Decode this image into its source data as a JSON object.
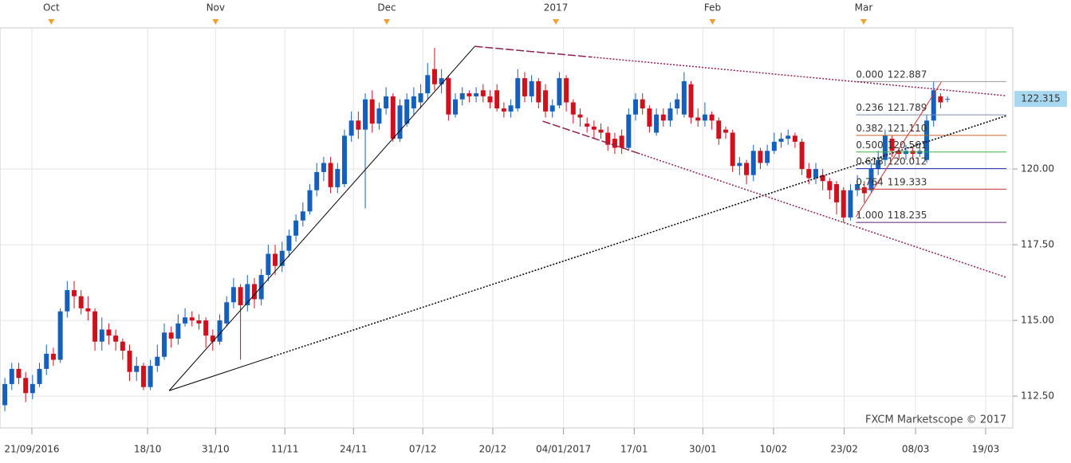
{
  "chart_data": {
    "type": "candlestick",
    "watermark": "FXCM Marketscope © 2017",
    "xlim": [
      -0.7,
      144.5
    ],
    "ylim": [
      111.45,
      124.66
    ],
    "grid": true,
    "up_color": "#1560bd",
    "down_color": "#d0101c",
    "yticks": [
      {
        "value": 112.5,
        "label": "112.50"
      },
      {
        "value": 115,
        "label": "115.00"
      },
      {
        "value": 117.5,
        "label": "117.50"
      },
      {
        "value": 120,
        "label": "120.00"
      }
    ],
    "xticks": [
      {
        "value": 3.9,
        "label": "21/09/2016"
      },
      {
        "value": 20.6,
        "label": "18/10"
      },
      {
        "value": 30.4,
        "label": "31/10"
      },
      {
        "value": 40.4,
        "label": "11/11"
      },
      {
        "value": 50.3,
        "label": "24/11"
      },
      {
        "value": 60.3,
        "label": "07/12"
      },
      {
        "value": 70.4,
        "label": "20/12"
      },
      {
        "value": 80.6,
        "label": "04/01/2017"
      },
      {
        "value": 90.8,
        "label": "17/01"
      },
      {
        "value": 100.7,
        "label": "30/01"
      },
      {
        "value": 110.9,
        "label": "10/02"
      },
      {
        "value": 121.1,
        "label": "23/02"
      },
      {
        "value": 131.4,
        "label": "08/03"
      },
      {
        "value": 141.5,
        "label": "19/03"
      }
    ],
    "month_ticks": [
      {
        "value": 6.7,
        "label": "Oct"
      },
      {
        "value": 30.4,
        "label": "Nov"
      },
      {
        "value": 55.1,
        "label": "Dec"
      },
      {
        "value": 79.5,
        "label": "2017"
      },
      {
        "value": 102.1,
        "label": "Feb"
      },
      {
        "value": 123.9,
        "label": "Mar"
      }
    ],
    "open": [
      112.2,
      112.9,
      113.4,
      113.1,
      112.6,
      112.9,
      113.4,
      113.9,
      113.7,
      115.3,
      116.0,
      115.8,
      115.4,
      115.3,
      114.3,
      114.7,
      114.5,
      114.3,
      114.0,
      113.3,
      113.5,
      112.8,
      113.5,
      113.8,
      114.6,
      114.4,
      114.9,
      115.1,
      115.0,
      115.0,
      114.5,
      114.3,
      114.9,
      115.6,
      116.1,
      115.5,
      116.2,
      115.7,
      116.5,
      117.2,
      116.8,
      117.3,
      117.8,
      118.3,
      118.6,
      119.3,
      119.9,
      120.2,
      119.4,
      119.5,
      121.1,
      121.6,
      121.3,
      122.3,
      121.5,
      122.0,
      122.4,
      121.0,
      121.5,
      122.0,
      122.2,
      122.5,
      123.3,
      122.8,
      123.0,
      121.8,
      122.3,
      122.5,
      122.4,
      122.6,
      122.4,
      122.6,
      122.0,
      121.9,
      122.0,
      123.0,
      122.4,
      122.9,
      122.6,
      121.9,
      122.1,
      123.0,
      122.2,
      121.8,
      121.5,
      121.4,
      121.3,
      121.2,
      121.0,
      121.1,
      120.7,
      121.8,
      122.3,
      122.0,
      121.2,
      121.8,
      121.6,
      122.0,
      121.8,
      122.8,
      121.7,
      121.6,
      121.8,
      121.6,
      121.3,
      121.2,
      120.1,
      120.2,
      119.8,
      120.6,
      120.2,
      120.6,
      120.9,
      121.0,
      121.1,
      120.9,
      120.0,
      119.7,
      119.8,
      119.6,
      119.5,
      119.3,
      118.4,
      119.3,
      119.4,
      119.3,
      120.0,
      120.3,
      121.0,
      120.6,
      120.5,
      120.6,
      120.5,
      120.3,
      121.6,
      122.4,
      122.3
    ],
    "high": [
      113.1,
      113.6,
      113.6,
      113.3,
      113.2,
      113.6,
      114.2,
      114.1,
      115.4,
      116.3,
      116.3,
      116.0,
      115.8,
      115.4,
      115.1,
      114.9,
      114.7,
      114.4,
      114.2,
      113.8,
      113.6,
      113.7,
      114.2,
      114.9,
      114.8,
      115.2,
      115.4,
      115.3,
      115.2,
      115.1,
      114.7,
      115.2,
      115.8,
      116.4,
      116.2,
      116.5,
      116.4,
      116.7,
      117.5,
      117.5,
      117.6,
      118.0,
      118.5,
      118.9,
      119.5,
      120.2,
      120.4,
      120.4,
      120.2,
      121.3,
      121.9,
      121.9,
      122.5,
      122.6,
      122.2,
      122.7,
      122.5,
      122.3,
      122.5,
      122.7,
      122.8,
      123.5,
      124.0,
      123.3,
      123.1,
      122.5,
      122.7,
      122.6,
      122.7,
      122.8,
      122.6,
      122.8,
      122.2,
      122.3,
      123.3,
      123.2,
      123.1,
      123.0,
      122.8,
      122.3,
      123.2,
      123.1,
      122.3,
      122.0,
      121.7,
      121.6,
      121.5,
      121.4,
      121.2,
      121.3,
      122.0,
      122.5,
      122.5,
      122.1,
      122.0,
      122.0,
      122.2,
      122.5,
      123.2,
      122.9,
      122.0,
      122.2,
      121.9,
      121.7,
      121.4,
      121.3,
      120.4,
      120.3,
      120.8,
      120.7,
      120.8,
      121.2,
      121.2,
      121.3,
      121.2,
      121.0,
      120.2,
      120.2,
      120.0,
      119.7,
      119.6,
      119.4,
      119.5,
      119.8,
      119.6,
      120.2,
      120.6,
      121.3,
      121.1,
      120.7,
      120.8,
      120.7,
      120.9,
      121.8,
      122.887,
      122.5,
      122.4
    ],
    "low": [
      112.0,
      112.7,
      112.9,
      112.3,
      112.4,
      112.8,
      113.2,
      113.5,
      113.6,
      115.1,
      115.4,
      115.2,
      115.0,
      114.0,
      114.0,
      114.2,
      114.0,
      113.7,
      113.0,
      113.0,
      112.7,
      112.7,
      113.3,
      113.7,
      114.1,
      114.2,
      114.8,
      114.8,
      114.7,
      114.1,
      114.0,
      114.2,
      114.8,
      115.4,
      113.7,
      115.3,
      115.4,
      115.5,
      116.3,
      116.5,
      116.6,
      117.1,
      117.6,
      118.1,
      118.5,
      119.1,
      119.6,
      119.2,
      119.2,
      119.4,
      120.9,
      121.0,
      118.7,
      121.2,
      121.3,
      121.8,
      120.9,
      120.9,
      121.4,
      121.8,
      122.0,
      122.3,
      122.6,
      122.5,
      121.6,
      121.7,
      122.1,
      122.2,
      122.2,
      122.2,
      122.0,
      121.9,
      121.7,
      121.7,
      121.9,
      122.2,
      122.2,
      122.0,
      121.7,
      121.7,
      122.0,
      121.9,
      121.5,
      121.4,
      121.2,
      121.0,
      121.0,
      120.6,
      120.5,
      120.5,
      120.6,
      121.6,
      121.8,
      121.2,
      121.1,
      121.4,
      121.4,
      121.8,
      121.7,
      121.5,
      121.4,
      121.4,
      121.3,
      120.8,
      121.0,
      119.9,
      119.8,
      119.5,
      119.6,
      120.0,
      120.1,
      120.5,
      120.7,
      120.8,
      120.7,
      119.8,
      119.5,
      119.5,
      119.3,
      119.0,
      118.5,
      118.235,
      118.3,
      119.1,
      118.9,
      119.2,
      119.8,
      120.1,
      120.4,
      120.3,
      120.3,
      120.3,
      120.4,
      120.2,
      121.4,
      122.0,
      122.2
    ],
    "close": [
      112.9,
      113.4,
      113.1,
      112.6,
      112.9,
      113.4,
      113.9,
      113.7,
      115.3,
      116.0,
      115.8,
      115.4,
      115.3,
      114.3,
      114.7,
      114.5,
      114.3,
      114.0,
      113.3,
      113.5,
      112.8,
      113.5,
      113.8,
      114.6,
      114.4,
      114.9,
      115.1,
      115.0,
      114.9,
      114.5,
      114.3,
      115.0,
      115.6,
      116.1,
      115.5,
      116.2,
      115.7,
      116.5,
      117.2,
      116.8,
      117.3,
      117.8,
      118.3,
      118.6,
      119.3,
      119.9,
      120.2,
      119.4,
      120.0,
      121.1,
      121.6,
      121.3,
      122.3,
      121.5,
      122.0,
      122.4,
      121.0,
      122.1,
      122.3,
      122.4,
      122.5,
      123.1,
      122.8,
      123.0,
      121.8,
      122.3,
      122.5,
      122.4,
      122.5,
      122.4,
      122.2,
      122.0,
      121.9,
      122.1,
      123.0,
      122.4,
      122.9,
      122.2,
      121.9,
      122.1,
      123.0,
      122.2,
      121.8,
      121.7,
      121.4,
      121.3,
      121.2,
      120.8,
      120.7,
      120.7,
      121.8,
      122.3,
      122.0,
      121.4,
      121.8,
      121.6,
      122.0,
      122.3,
      122.9,
      121.7,
      121.6,
      121.8,
      121.6,
      121.0,
      121.2,
      120.1,
      120.2,
      119.8,
      120.6,
      120.2,
      120.6,
      120.9,
      121.0,
      121.1,
      120.9,
      120.0,
      119.7,
      120.0,
      119.6,
      119.3,
      118.9,
      118.4,
      119.3,
      119.5,
      119.2,
      120.0,
      120.3,
      121.1,
      120.6,
      120.5,
      120.6,
      120.5,
      120.6,
      121.6,
      122.6,
      122.2,
      122.315
    ],
    "last_price": {
      "value": 122.315,
      "color": "#a8d8f0"
    },
    "fib_start": 122.8,
    "fib_levels": [
      {
        "ratio": "0.000",
        "price": 122.887,
        "price_label": "122.887",
        "color": "#999999"
      },
      {
        "ratio": "0.236",
        "price": 121.789,
        "price_label": "121.789",
        "color": "#7f8fa8"
      },
      {
        "ratio": "0.382",
        "price": 121.11,
        "price_label": "121.110",
        "color": "#c8642a"
      },
      {
        "ratio": "0.500",
        "price": 120.561,
        "price_label": "120.561",
        "color": "#3cb043"
      },
      {
        "ratio": "0.618",
        "price": 120.012,
        "price_label": "120.012",
        "color": "#1a2aa8"
      },
      {
        "ratio": "0.764",
        "price": 119.333,
        "price_label": "119.333",
        "color": "#c83232"
      },
      {
        "ratio": "1.000",
        "price": 118.235,
        "price_label": "118.235",
        "color": "#5a2070"
      }
    ],
    "trendlines": [
      {
        "points": [
          [
            23.7,
            112.68
          ],
          [
            67.8,
            124.05
          ]
        ],
        "color": "#000000",
        "dash": "none"
      },
      {
        "points": [
          [
            23.7,
            112.68
          ],
          [
            38.4,
            113.79
          ]
        ],
        "color": "#000000",
        "dash": "none"
      },
      {
        "points": [
          [
            38.4,
            113.79
          ],
          [
            144.5,
            121.76
          ]
        ],
        "color": "#000000",
        "dash": "2,2"
      },
      {
        "points": [
          [
            67.8,
            124.05
          ],
          [
            84.5,
            123.7
          ]
        ],
        "color": "#8b2252",
        "dash": "10,3"
      },
      {
        "points": [
          [
            84.5,
            123.7
          ],
          [
            144.5,
            122.42
          ]
        ],
        "color": "#8b2252",
        "dash": "2,2"
      },
      {
        "points": [
          [
            77.6,
            121.58
          ],
          [
            91.4,
            120.52
          ]
        ],
        "color": "#8b2252",
        "dash": "10,3"
      },
      {
        "points": [
          [
            91.4,
            120.52
          ],
          [
            144.5,
            116.42
          ]
        ],
        "color": "#8b2252",
        "dash": "2,2"
      },
      {
        "points": [
          [
            122.8,
            118.42
          ],
          [
            135.1,
            122.87
          ]
        ],
        "color": "#d03030",
        "dash": "none"
      }
    ]
  }
}
